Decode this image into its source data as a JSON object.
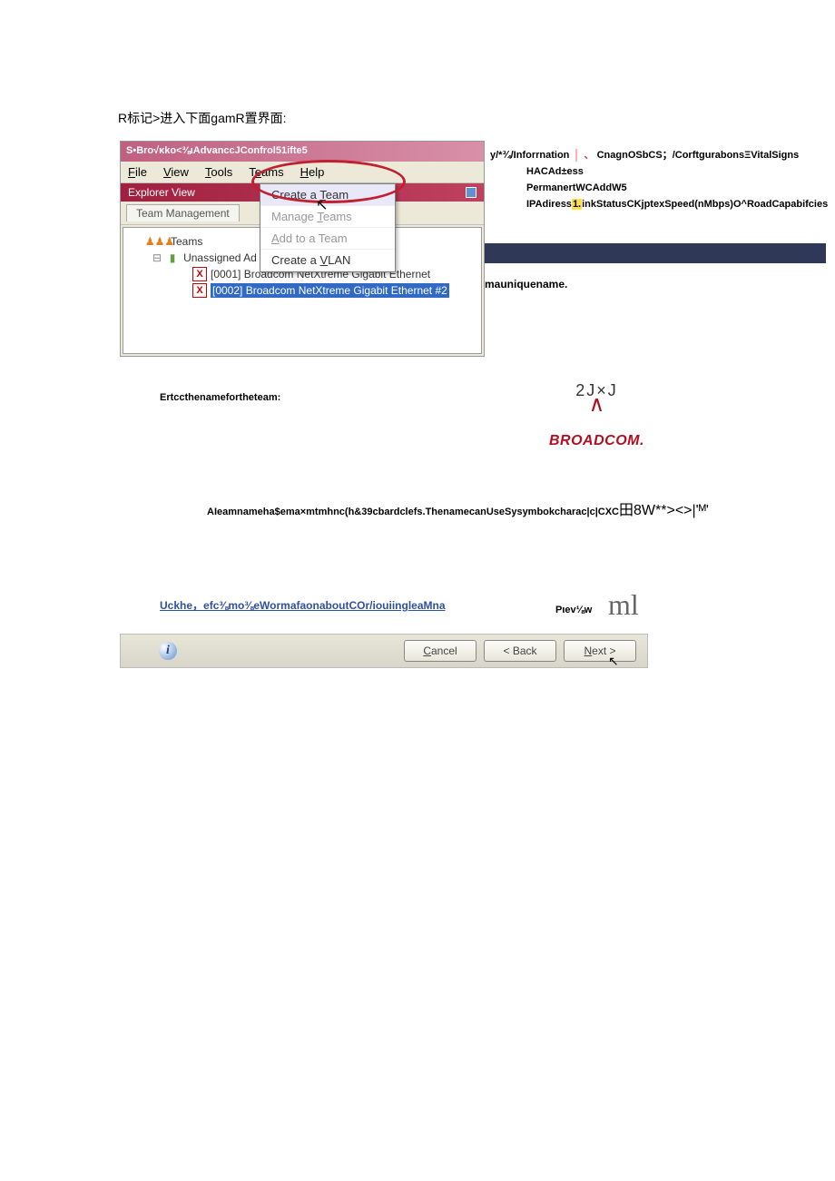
{
  "page_title": "R标记>进入下面gamR置界面:",
  "window": {
    "title": "S•Bro√κko<⅜ιAdvanccJConfrol51ifte5",
    "menu": {
      "file": "File",
      "view": "View",
      "tools": "Tools",
      "teams": "Teams",
      "help": "Help"
    },
    "explorer_label": "Explorer View",
    "tab_label": "Team Management",
    "tree": {
      "teams": "Teams",
      "unassigned": "Unassigned Ad",
      "adapter1": "[0001] Broadcom NetXtreme Gigabit Ethernet",
      "adapter2": "[0002] Broadcom NetXtreme Gigabit Ethernet #2"
    }
  },
  "dropdown": {
    "create_team": "Create a Team",
    "manage_teams": "Manage Teams",
    "add_to_team": "Add to a Team",
    "create_vlan": "Create a VLAN"
  },
  "right_tabs": {
    "info": "y/*¾/Inforrnation",
    "rest": "CnagnOSbCS；/CorftgurabonsΞVitalSigns"
  },
  "right_info": {
    "line1": "HACAd±ess",
    "line2": "PermanertWCAddW5",
    "line3a": "IPAdiress",
    "line3_hl": "1.",
    "line3b": "inkStatusCKjptexSpeed(nMbps)O^RoadCapabifcies"
  },
  "unique_name": "mauniquename.",
  "enter_name": "Ertccthenamefortheteam:",
  "logo": {
    "top": "2J×J",
    "brand": "BROADCOM."
  },
  "middle_text": {
    "a": "AIeamnameha$ema×mtmhnc(h&39cbardclefs.ThenamecanUseSysymbokcharac",
    "b": "|c|",
    "c": "CXC",
    "d": "田",
    "e": "8W**><>|'ᴹ'"
  },
  "link_text": "Uckhe，efc⅜mo⅜eWormafaonaboutCOr/iouiingleaMna",
  "preview": "Pιev⅛w",
  "ml": "ml",
  "buttons": {
    "cancel": "Cancel",
    "back": "< Back",
    "next": "Next >"
  },
  "colors": {
    "titlebar_start": "#c06080",
    "explorer_start": "#a02040",
    "highlight_blue": "#316ac5",
    "red_ellipse": "#c02030",
    "broadcom_red": "#b01020",
    "yellow": "#ffe040",
    "dark_bar": "#303858"
  }
}
